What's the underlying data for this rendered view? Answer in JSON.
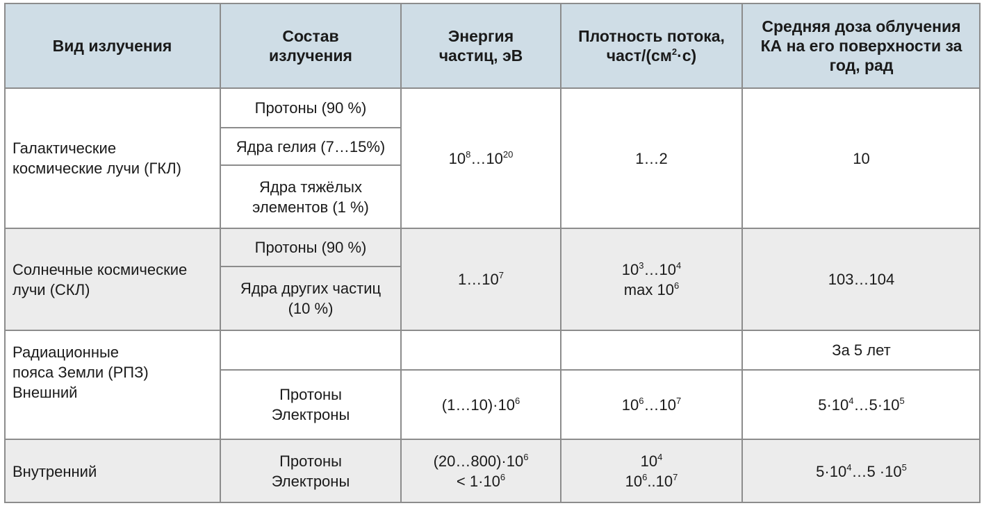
{
  "headers": [
    "Вид излучения",
    "Состав излучения",
    "Энергия частиц, эВ",
    "Плотность потока, част/(см<sup>2</sup>·с)",
    "Средняя доза облучения КА на его поверхности за год, рад"
  ],
  "rows": {
    "gkl": {
      "type": "Галактические космические лучи (ГКЛ)",
      "composition": [
        "Протоны (90 %)",
        "Ядра гелия (7…15%)",
        "Ядра тяжёлых элементов (1 %)"
      ],
      "energy": "10<sup>8</sup>…10<sup>20</sup>",
      "flux": "1…2",
      "dose": "10"
    },
    "skl": {
      "type": "Солнечные космические лучи (СКЛ)",
      "composition": [
        "Протоны (90 %)",
        "Ядра других частиц (10 %)"
      ],
      "energy": "1…10<sup>7</sup>",
      "flux": "10<sup>3</sup>…10<sup>4</sup><br>max 10<sup>6</sup>",
      "dose": "103…104"
    },
    "rpz_outer": {
      "type": "Радиационные пояса Земли (РПЗ) Внешний",
      "dose_note": "За 5 лет",
      "composition": "Протоны<br>Электроны",
      "energy": "(1…10)·10<sup>6</sup>",
      "flux": "10<sup>6</sup>…10<sup>7</sup>",
      "dose": "5·10<sup>4</sup>…5·10<sup>5</sup>"
    },
    "rpz_inner": {
      "type": "Внутренний",
      "composition": "Протоны<br>Электроны",
      "energy": "(20…800)·10<sup>6</sup><br>&lt; 1·10<sup>6</sup>",
      "flux": "10<sup>4</sup><br>10<sup>6</sup>..10<sup>7</sup>",
      "dose": "5·10<sup>4</sup>…5 ·10<sup>5</sup>"
    }
  }
}
